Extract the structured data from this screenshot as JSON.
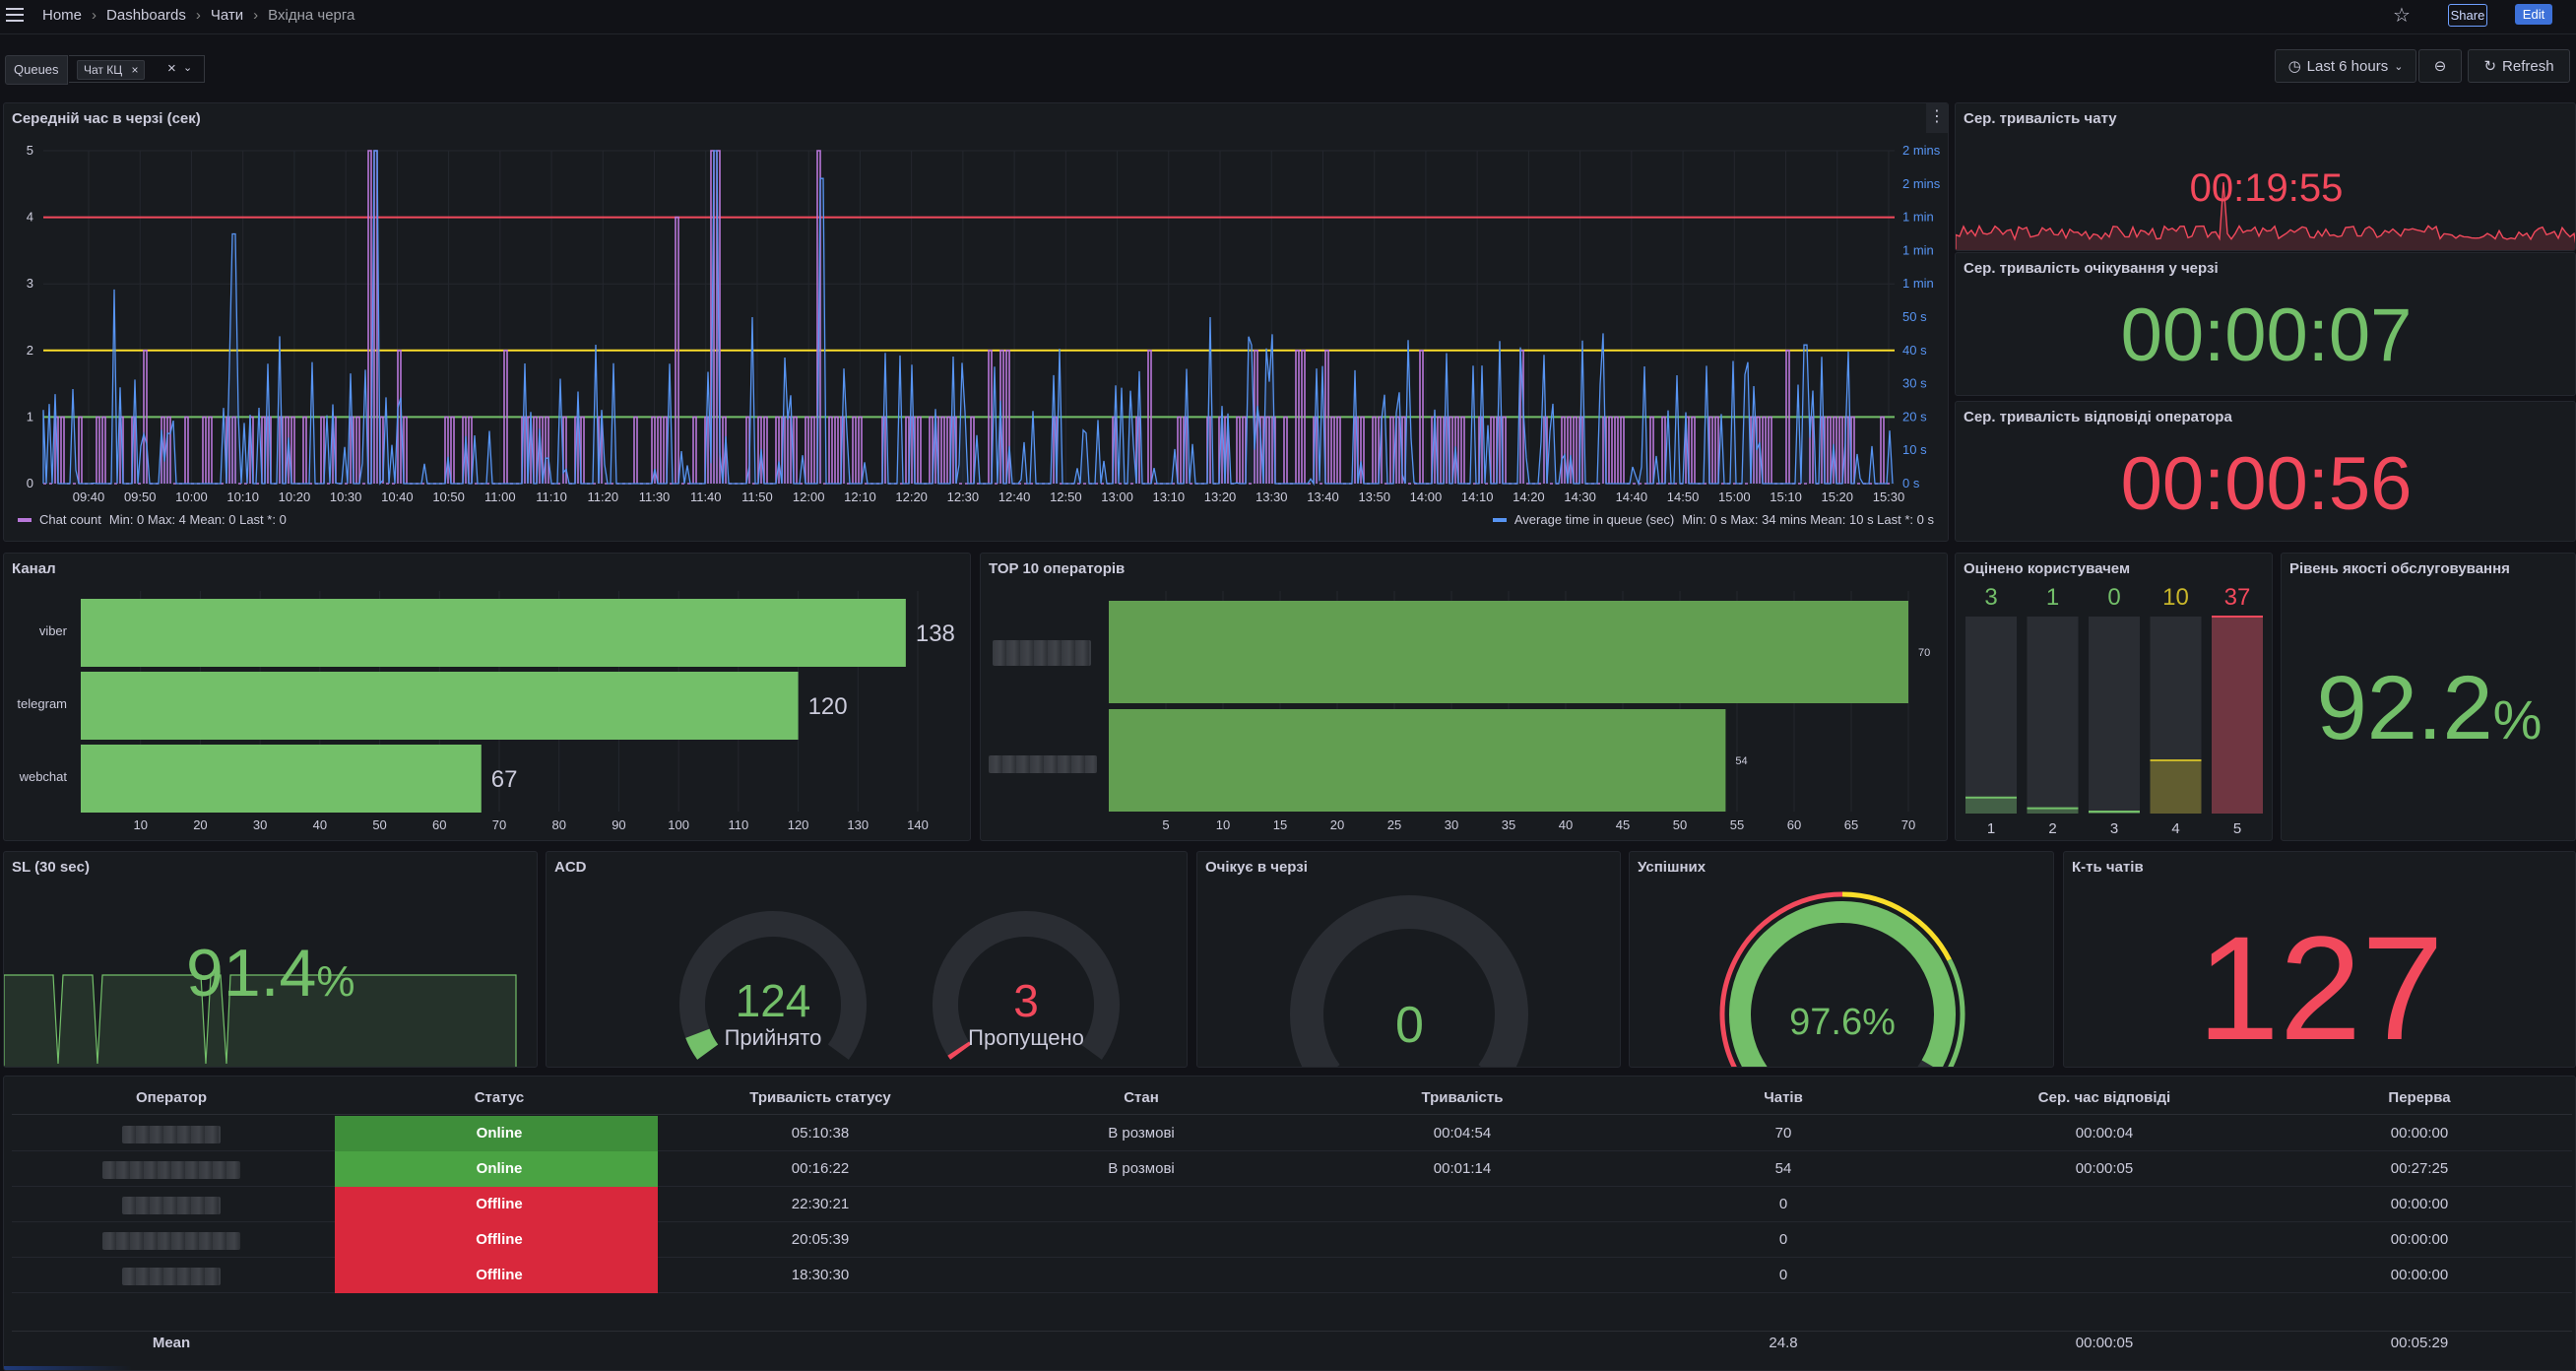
{
  "breadcrumb": {
    "home": "Home",
    "dashboards": "Dashboards",
    "folder": "Чати",
    "current": "Вхідна черга"
  },
  "header": {
    "share": "Share",
    "edit": "Edit"
  },
  "variables": {
    "label": "Queues",
    "chip": "Чат КЦ"
  },
  "toolbar": {
    "time_range": "Last 6 hours",
    "refresh": "Refresh"
  },
  "panels": {
    "queue_time": {
      "title": "Середній час в черзі (сек)",
      "legend_left": {
        "name": "Chat count",
        "stats": "Min: 0   Max: 4   Mean: 0   Last *: 0"
      },
      "legend_right": {
        "name": "Average time in queue (sec)",
        "stats": "Min: 0 s   Max: 34 mins   Mean: 10 s   Last *: 0 s"
      }
    },
    "chat_duration": {
      "title": "Сер. тривалість чату",
      "value": "00:19:55"
    },
    "wait_duration": {
      "title": "Сер. тривалість очікування у черзі",
      "value": "00:00:07"
    },
    "answer_duration": {
      "title": "Сер. тривалість відповіді оператора",
      "value": "00:00:56"
    },
    "channel": {
      "title": "Канал"
    },
    "top10": {
      "title": "TOP 10 операторів"
    },
    "rated": {
      "title": "Оцінено користувачем"
    },
    "quality": {
      "title": "Рівень якості обслуговування",
      "value": "92.2",
      "unit": "%"
    },
    "sl": {
      "title": "SL (30 sec)",
      "value": "91.4",
      "unit": "%"
    },
    "acd": {
      "title": "ACD",
      "accepted_value": "124",
      "accepted_label": "Прийнято",
      "missed_value": "3",
      "missed_label": "Пропущено"
    },
    "waiting": {
      "title": "Очікує в черзі",
      "value": "0"
    },
    "success": {
      "title": "Успішних",
      "value": "97.6%",
      "fraction": 0.976
    },
    "chat_count": {
      "title": "К-ть чатів",
      "value": "127"
    }
  },
  "colors": {
    "green": "#73bf69",
    "red": "#f2495c",
    "yellow": "#fade2a",
    "blue": "#5794f2",
    "purple": "#b877d9"
  },
  "chart_data": [
    {
      "type": "line",
      "title": "Середній час в черзі (сек)",
      "x_ticks": [
        "09:40",
        "09:50",
        "10:00",
        "10:10",
        "10:20",
        "10:30",
        "10:40",
        "10:50",
        "11:00",
        "11:10",
        "11:20",
        "11:30",
        "11:40",
        "11:50",
        "12:00",
        "12:10",
        "12:20",
        "12:30",
        "12:40",
        "12:50",
        "13:00",
        "13:10",
        "13:20",
        "13:30",
        "13:40",
        "13:50",
        "14:00",
        "14:10",
        "14:20",
        "14:30",
        "14:40",
        "14:50",
        "15:00",
        "15:10",
        "15:20",
        "15:30"
      ],
      "y_left_ticks": [
        "0",
        "1",
        "2",
        "3",
        "4",
        "5"
      ],
      "y_right_ticks": [
        "0 s",
        "10 s",
        "20 s",
        "30 s",
        "40 s",
        "50 s",
        "1 min",
        "1 min",
        "1 min",
        "2 mins",
        "2 mins"
      ],
      "thresholds": [
        {
          "value": 1,
          "color": "#73bf69"
        },
        {
          "value": 2,
          "color": "#fade2a"
        },
        {
          "value": 4,
          "color": "#f2495c"
        }
      ],
      "series": [
        {
          "name": "Chat count"
        },
        {
          "name": "Average time in queue (sec)"
        }
      ]
    },
    {
      "type": "bar",
      "title": "Канал",
      "categories": [
        "viber",
        "telegram",
        "webchat"
      ],
      "values": [
        138,
        120,
        67
      ],
      "x_ticks": [
        "10",
        "20",
        "30",
        "40",
        "50",
        "60",
        "70",
        "80",
        "90",
        "100",
        "110",
        "120",
        "130",
        "140"
      ]
    },
    {
      "type": "bar",
      "title": "TOP 10 операторів",
      "values": [
        70,
        54
      ],
      "x_ticks": [
        "5",
        "10",
        "15",
        "20",
        "25",
        "30",
        "35",
        "40",
        "45",
        "50",
        "55",
        "60",
        "65",
        "70"
      ]
    },
    {
      "type": "bar",
      "title": "Оцінено користувачем",
      "categories": [
        "1",
        "2",
        "3",
        "4",
        "5"
      ],
      "values": [
        3,
        1,
        0,
        10,
        37
      ]
    }
  ],
  "table": {
    "headers": [
      "Оператор",
      "Статус",
      "Тривалість статусу",
      "Стан",
      "Тривалість",
      "Чатів",
      "Сер. час відповіді",
      "Перерва"
    ],
    "rows": [
      {
        "status": "Online",
        "status_dur": "05:10:38",
        "state": "В розмові",
        "dur": "00:04:54",
        "chats": "70",
        "avg": "00:00:04",
        "break": "00:00:00"
      },
      {
        "status": "Online",
        "status_dur": "00:16:22",
        "state": "В розмові",
        "dur": "00:01:14",
        "chats": "54",
        "avg": "00:00:05",
        "break": "00:27:25"
      },
      {
        "status": "Offline",
        "status_dur": "22:30:21",
        "state": "",
        "dur": "",
        "chats": "0",
        "avg": "",
        "break": "00:00:00"
      },
      {
        "status": "Offline",
        "status_dur": "20:05:39",
        "state": "",
        "dur": "",
        "chats": "0",
        "avg": "",
        "break": "00:00:00"
      },
      {
        "status": "Offline",
        "status_dur": "18:30:30",
        "state": "",
        "dur": "",
        "chats": "0",
        "avg": "",
        "break": "00:00:00"
      }
    ],
    "footer": {
      "label": "Mean",
      "chats": "24.8",
      "avg": "00:00:05",
      "break": "00:05:29"
    }
  }
}
